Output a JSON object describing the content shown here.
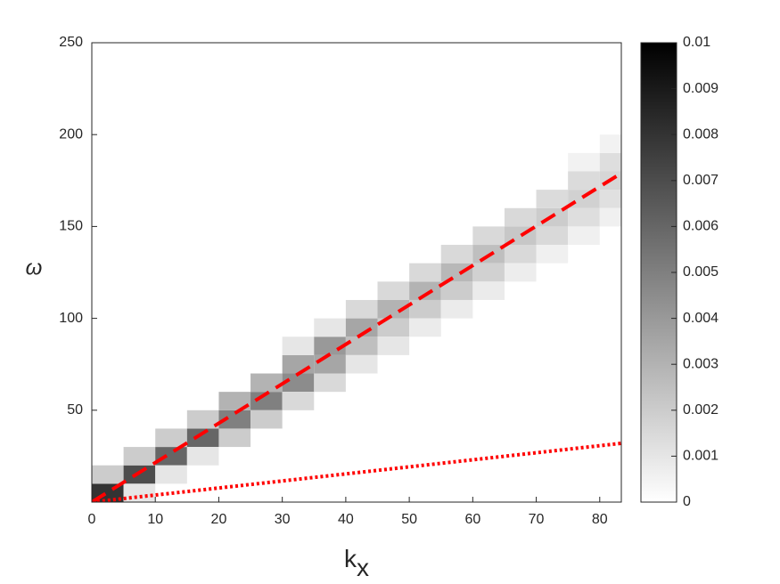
{
  "chart_data": {
    "type": "heatmap",
    "x_label": "k",
    "x_label_subscript": "x",
    "y_label": "ω",
    "xlim": [
      0,
      83.4
    ],
    "xticks": [
      0,
      10,
      20,
      30,
      40,
      50,
      60,
      70,
      80
    ],
    "ylim": [
      0,
      250
    ],
    "yticks": [
      50,
      100,
      150,
      200,
      250
    ],
    "colorbar": {
      "lim": [
        0,
        0.01
      ],
      "ticks": [
        0,
        0.001,
        0.002,
        0.003,
        0.004,
        0.005,
        0.006,
        0.007,
        0.008,
        0.009,
        0.01
      ],
      "colors": [
        "#ffffff",
        "#000000"
      ]
    },
    "cells": {
      "x": [
        2.5,
        2.5,
        7.5,
        7.5,
        7.5,
        12.5,
        12.5,
        12.5,
        17.5,
        17.5,
        17.5,
        22.5,
        22.5,
        22.5,
        27.5,
        27.5,
        27.5,
        32.5,
        32.5,
        32.5,
        32.5,
        37.5,
        37.5,
        37.5,
        37.5,
        42.5,
        42.5,
        42.5,
        42.5,
        47.5,
        47.5,
        47.5,
        47.5,
        52.5,
        52.5,
        52.5,
        52.5,
        57.5,
        57.5,
        57.5,
        57.5,
        62.5,
        62.5,
        62.5,
        62.5,
        67.5,
        67.5,
        67.5,
        67.5,
        72.5,
        72.5,
        72.5,
        72.5,
        77.5,
        77.5,
        77.5,
        77.5,
        77.5,
        82.5,
        82.5,
        82.5,
        82.5,
        82.5
      ],
      "y": [
        5,
        15,
        15,
        5,
        25,
        25,
        35,
        15,
        35,
        45,
        25,
        45,
        55,
        35,
        55,
        65,
        45,
        65,
        75,
        55,
        85,
        75,
        85,
        65,
        95,
        85,
        95,
        105,
        75,
        95,
        105,
        115,
        85,
        105,
        115,
        125,
        95,
        115,
        125,
        135,
        105,
        125,
        135,
        145,
        115,
        135,
        145,
        155,
        125,
        145,
        155,
        165,
        135,
        155,
        165,
        175,
        145,
        185,
        165,
        175,
        185,
        155,
        195
      ],
      "values": [
        0.008,
        0.002,
        0.007,
        0.001,
        0.002,
        0.006,
        0.002,
        0.001,
        0.006,
        0.002,
        0.001,
        0.005,
        0.003,
        0.002,
        0.005,
        0.003,
        0.002,
        0.0045,
        0.0035,
        0.0015,
        0.001,
        0.0035,
        0.004,
        0.0015,
        0.001,
        0.0025,
        0.0035,
        0.0015,
        0.001,
        0.002,
        0.003,
        0.0015,
        0.001,
        0.002,
        0.003,
        0.0015,
        0.0008,
        0.002,
        0.0028,
        0.0015,
        0.0008,
        0.0018,
        0.0025,
        0.0015,
        0.0008,
        0.0015,
        0.0022,
        0.0015,
        0.0007,
        0.0015,
        0.002,
        0.0014,
        0.0006,
        0.0013,
        0.0018,
        0.0014,
        0.0006,
        0.0005,
        0.0012,
        0.0016,
        0.0013,
        0.0006,
        0.0005
      ]
    },
    "series": [
      {
        "color": "#ff0000",
        "linestyle": "dashed",
        "x": [
          0,
          83.4
        ],
        "values": [
          0,
          179
        ]
      },
      {
        "color": "#ff0000",
        "linestyle": "dotted",
        "x": [
          0,
          83.4
        ],
        "values": [
          0,
          32
        ]
      }
    ]
  }
}
